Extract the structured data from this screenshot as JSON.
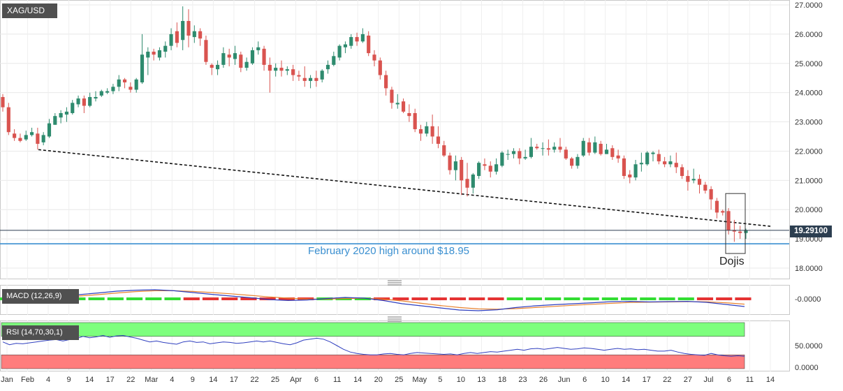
{
  "symbol": "XAG/USD",
  "current_price": "19.29100",
  "macd_label": "MACD (12,26,9)",
  "rsi_label": "RSI (14,70,30,1)",
  "annotations": {
    "support": "February 2020 high around $18.95",
    "dojis": "Dojis"
  },
  "colors": {
    "up": "#2e8b6e",
    "down": "#d9534f",
    "support_line": "#3a8fd0",
    "price_line": "#2c3e50",
    "rsi_overbought": "#7dff7d",
    "rsi_oversold": "#ff7d7d",
    "macd_line": "#2f3fbf",
    "signal_line": "#e8832f",
    "hist_pos": "#33dd33",
    "hist_neg": "#e53333"
  },
  "chart_data": [
    {
      "type": "candlestick",
      "title": "XAG/USD",
      "ylim": [
        17.5,
        27.1
      ],
      "yticks": [
        "27.0000",
        "26.0000",
        "25.0000",
        "24.0000",
        "23.0000",
        "22.0000",
        "21.0000",
        "20.0000",
        "19.0000",
        "18.0000"
      ],
      "xticks": [
        "Jan",
        "Feb",
        "4",
        "9",
        "14",
        "17",
        "22",
        "Mar",
        "4",
        "9",
        "14",
        "17",
        "22",
        "25",
        "Apr",
        "6",
        "11",
        "14",
        "20",
        "25",
        "May",
        "5",
        "10",
        "13",
        "18",
        "23",
        "26",
        "Jun",
        "6",
        "10",
        "14",
        "17",
        "22",
        "27",
        "Jul",
        "6",
        "11",
        "14"
      ],
      "current_price": 19.291,
      "support_level": 18.95,
      "trendline": [
        {
          "x": "Feb 3",
          "y": 22.05
        },
        {
          "x": "Jul 8",
          "y": 19.53
        }
      ],
      "candles": [
        [
          23.85,
          23.5,
          23.95,
          23.35
        ],
        [
          23.5,
          22.65,
          23.65,
          22.55
        ],
        [
          22.6,
          22.45,
          22.75,
          22.35
        ],
        [
          22.45,
          22.35,
          22.6,
          22.3
        ],
        [
          22.4,
          22.55,
          22.7,
          22.35
        ],
        [
          22.55,
          22.65,
          22.8,
          22.5
        ],
        [
          22.6,
          22.25,
          22.8,
          22.05
        ],
        [
          22.3,
          22.55,
          22.65,
          22.2
        ],
        [
          22.5,
          22.95,
          23.1,
          22.45
        ],
        [
          22.9,
          23.2,
          23.3,
          22.9
        ],
        [
          23.15,
          23.3,
          23.4,
          22.95
        ],
        [
          23.25,
          23.35,
          23.5,
          23.0
        ],
        [
          23.3,
          23.65,
          23.75,
          23.25
        ],
        [
          23.6,
          23.8,
          23.9,
          23.5
        ],
        [
          23.8,
          23.55,
          23.9,
          23.3
        ],
        [
          23.55,
          23.85,
          24.0,
          23.5
        ],
        [
          23.8,
          23.85,
          24.05,
          23.7
        ],
        [
          23.9,
          24.05,
          24.1,
          23.85
        ],
        [
          24.0,
          24.05,
          24.15,
          23.95
        ],
        [
          24.05,
          24.2,
          24.3,
          23.95
        ],
        [
          24.2,
          24.45,
          24.6,
          24.05
        ],
        [
          24.45,
          24.35,
          24.5,
          24.15
        ],
        [
          24.2,
          24.1,
          24.35,
          24.0
        ],
        [
          24.1,
          24.45,
          24.5,
          24.0
        ],
        [
          24.35,
          25.3,
          26.0,
          24.3
        ],
        [
          25.2,
          25.4,
          25.55,
          24.6
        ],
        [
          25.4,
          25.3,
          25.5,
          25.1
        ],
        [
          25.2,
          25.45,
          25.55,
          25.1
        ],
        [
          25.4,
          25.6,
          25.75,
          25.2
        ],
        [
          25.6,
          26.0,
          26.2,
          25.45
        ],
        [
          26.1,
          25.7,
          26.4,
          25.55
        ],
        [
          25.8,
          26.45,
          26.95,
          25.45
        ],
        [
          26.45,
          25.95,
          26.85,
          25.55
        ],
        [
          25.9,
          26.1,
          26.3,
          25.7
        ],
        [
          26.1,
          25.85,
          26.2,
          25.6
        ],
        [
          25.8,
          25.05,
          25.95,
          24.95
        ],
        [
          24.95,
          24.85,
          25.0,
          24.6
        ],
        [
          24.8,
          24.95,
          25.1,
          24.6
        ],
        [
          24.95,
          25.35,
          25.55,
          24.85
        ],
        [
          25.3,
          25.2,
          25.5,
          24.9
        ],
        [
          25.15,
          25.35,
          25.6,
          24.95
        ],
        [
          25.3,
          24.85,
          25.4,
          24.7
        ],
        [
          24.85,
          25.05,
          25.2,
          24.75
        ],
        [
          25.0,
          25.45,
          25.55,
          24.95
        ],
        [
          25.45,
          25.55,
          25.75,
          25.3
        ],
        [
          25.5,
          24.95,
          25.6,
          24.75
        ],
        [
          24.95,
          24.75,
          25.2,
          24.0
        ],
        [
          24.75,
          24.85,
          25.0,
          24.55
        ],
        [
          24.85,
          24.75,
          25.1,
          24.55
        ],
        [
          24.75,
          24.8,
          24.9,
          24.6
        ],
        [
          24.8,
          24.6,
          24.95,
          24.4
        ],
        [
          24.6,
          24.55,
          24.75,
          24.4
        ],
        [
          24.5,
          24.4,
          24.9,
          24.2
        ],
        [
          24.4,
          24.5,
          24.6,
          24.15
        ],
        [
          24.5,
          24.4,
          24.75,
          24.2
        ],
        [
          24.45,
          24.75,
          24.8,
          24.35
        ],
        [
          24.8,
          24.95,
          25.1,
          24.65
        ],
        [
          24.95,
          25.25,
          25.4,
          24.9
        ],
        [
          25.2,
          25.6,
          25.65,
          25.1
        ],
        [
          25.55,
          25.65,
          25.75,
          25.35
        ],
        [
          25.6,
          25.9,
          26.0,
          25.5
        ],
        [
          25.9,
          25.75,
          26.05,
          25.6
        ],
        [
          25.75,
          26.0,
          26.2,
          25.7
        ],
        [
          25.95,
          25.35,
          26.1,
          25.25
        ],
        [
          25.3,
          25.1,
          25.45,
          24.9
        ],
        [
          25.1,
          24.6,
          25.2,
          24.45
        ],
        [
          24.6,
          24.15,
          24.75,
          23.9
        ],
        [
          24.1,
          23.65,
          24.2,
          23.45
        ],
        [
          23.6,
          23.65,
          23.95,
          23.45
        ],
        [
          23.7,
          23.35,
          23.8,
          23.3
        ],
        [
          23.3,
          23.2,
          23.6,
          23.0
        ],
        [
          23.3,
          22.75,
          23.45,
          22.65
        ],
        [
          22.75,
          22.6,
          22.9,
          22.35
        ],
        [
          22.6,
          22.85,
          23.0,
          22.5
        ],
        [
          22.85,
          22.5,
          23.25,
          22.25
        ],
        [
          22.5,
          22.25,
          22.85,
          22.1
        ],
        [
          22.2,
          21.85,
          22.35,
          21.8
        ],
        [
          21.85,
          21.35,
          21.95,
          21.2
        ],
        [
          21.35,
          21.65,
          21.85,
          21.0
        ],
        [
          21.7,
          21.0,
          21.8,
          20.5
        ],
        [
          21.05,
          20.75,
          21.6,
          20.45
        ],
        [
          20.75,
          21.2,
          21.25,
          20.55
        ],
        [
          21.15,
          21.6,
          21.65,
          21.05
        ],
        [
          21.55,
          21.5,
          21.75,
          21.35
        ],
        [
          21.5,
          21.3,
          21.65,
          21.1
        ],
        [
          21.3,
          21.55,
          21.75,
          21.2
        ],
        [
          21.5,
          21.95,
          22.0,
          21.45
        ],
        [
          21.9,
          21.9,
          22.05,
          21.7
        ],
        [
          21.9,
          22.0,
          22.1,
          21.75
        ],
        [
          22.0,
          21.75,
          22.1,
          21.55
        ],
        [
          21.75,
          21.8,
          22.05,
          21.7
        ],
        [
          21.8,
          22.15,
          22.45,
          21.75
        ],
        [
          22.15,
          22.1,
          22.25,
          22.05
        ],
        [
          22.1,
          22.1,
          22.3,
          21.85
        ],
        [
          22.1,
          22.05,
          22.4,
          21.85
        ],
        [
          22.05,
          22.15,
          22.3,
          21.95
        ],
        [
          22.15,
          22.05,
          22.45,
          21.95
        ],
        [
          22.05,
          21.75,
          22.15,
          21.7
        ],
        [
          21.75,
          21.5,
          21.8,
          21.4
        ],
        [
          21.5,
          21.8,
          21.9,
          21.4
        ],
        [
          21.85,
          22.35,
          22.45,
          21.8
        ],
        [
          22.3,
          21.95,
          22.45,
          21.85
        ],
        [
          21.95,
          22.3,
          22.5,
          21.9
        ],
        [
          22.25,
          21.9,
          22.35,
          21.85
        ],
        [
          21.9,
          22.05,
          22.25,
          21.9
        ],
        [
          22.1,
          21.8,
          22.2,
          21.7
        ],
        [
          21.85,
          21.75,
          22.05,
          21.6
        ],
        [
          21.75,
          21.15,
          21.85,
          21.05
        ],
        [
          21.2,
          21.1,
          21.35,
          20.9
        ],
        [
          21.1,
          21.55,
          21.7,
          21.0
        ],
        [
          21.55,
          21.6,
          21.95,
          21.3
        ],
        [
          21.55,
          21.95,
          22.0,
          21.5
        ],
        [
          21.9,
          21.95,
          22.0,
          21.65
        ],
        [
          21.9,
          21.65,
          22.05,
          21.55
        ],
        [
          21.65,
          21.55,
          21.8,
          21.45
        ],
        [
          21.55,
          21.65,
          21.85,
          21.45
        ],
        [
          21.6,
          21.45,
          21.95,
          21.25
        ],
        [
          21.45,
          21.15,
          21.55,
          21.05
        ],
        [
          21.15,
          20.95,
          21.35,
          20.65
        ],
        [
          21.0,
          21.05,
          21.4,
          20.9
        ],
        [
          21.05,
          20.85,
          21.2,
          20.55
        ],
        [
          20.85,
          20.65,
          20.95,
          20.55
        ],
        [
          20.7,
          20.35,
          20.8,
          20.0
        ],
        [
          20.3,
          19.9,
          20.4,
          19.7
        ],
        [
          19.95,
          19.9,
          20.0,
          19.8
        ],
        [
          19.95,
          19.3,
          20.05,
          19.15
        ],
        [
          19.3,
          19.25,
          19.65,
          18.9
        ],
        [
          19.25,
          19.2,
          19.45,
          19.0
        ],
        [
          19.2,
          19.3,
          19.35,
          19.0
        ]
      ],
      "candle_x_dates": "Jan 1 – Jul 8 (trading days, approx.)"
    },
    {
      "type": "line",
      "title": "MACD (12,26,9)",
      "yticks": [
        "-0.0000"
      ],
      "series": [
        {
          "name": "MACD",
          "values": [
            0.0,
            0.05,
            0.12,
            0.2,
            0.3,
            0.42,
            0.55,
            0.62,
            0.65,
            0.58,
            0.45,
            0.32,
            0.2,
            0.08,
            -0.05,
            -0.12,
            -0.08,
            0.02,
            0.1,
            0.05,
            -0.12,
            -0.35,
            -0.5,
            -0.65,
            -0.8,
            -0.85,
            -0.78,
            -0.62,
            -0.5,
            -0.42,
            -0.35,
            -0.28,
            -0.2,
            -0.18,
            -0.22,
            -0.2,
            -0.18,
            -0.25,
            -0.4,
            -0.55
          ]
        },
        {
          "name": "Signal",
          "values": [
            0.0,
            0.02,
            0.06,
            0.12,
            0.2,
            0.3,
            0.42,
            0.52,
            0.58,
            0.58,
            0.53,
            0.45,
            0.36,
            0.25,
            0.14,
            0.05,
            -0.02,
            -0.02,
            0.02,
            0.04,
            -0.02,
            -0.15,
            -0.32,
            -0.48,
            -0.62,
            -0.72,
            -0.74,
            -0.7,
            -0.62,
            -0.54,
            -0.46,
            -0.39,
            -0.32,
            -0.26,
            -0.24,
            -0.22,
            -0.2,
            -0.21,
            -0.28,
            -0.38
          ]
        }
      ]
    },
    {
      "type": "line",
      "title": "RSI (14,70,30,1)",
      "yticks": [
        "50.0000",
        "0.0000"
      ],
      "levels": [
        70,
        30
      ],
      "series": [
        {
          "name": "RSI",
          "values": [
            58,
            52,
            55,
            54,
            56,
            58,
            60,
            62,
            63,
            60,
            63,
            65,
            70,
            67,
            69,
            72,
            68,
            71,
            72,
            69,
            66,
            62,
            58,
            60,
            57,
            55,
            53,
            58,
            60,
            57,
            58,
            54,
            56,
            58,
            57,
            55,
            56,
            58,
            60,
            58,
            60,
            57,
            54,
            52,
            56,
            62,
            64,
            66,
            64,
            58,
            50,
            42,
            36,
            33,
            31,
            30,
            30,
            32,
            33,
            31,
            30,
            33,
            35,
            34,
            33,
            32,
            31,
            32,
            30,
            33,
            35,
            33,
            35,
            37,
            36,
            38,
            40,
            42,
            40,
            43,
            44,
            42,
            44,
            46,
            44,
            42,
            43,
            45,
            44,
            42,
            40,
            42,
            44,
            42,
            43,
            41,
            42,
            40,
            38,
            38,
            40,
            36,
            33,
            31,
            30,
            29,
            33,
            30,
            28,
            27,
            28,
            27
          ]
        }
      ]
    }
  ]
}
